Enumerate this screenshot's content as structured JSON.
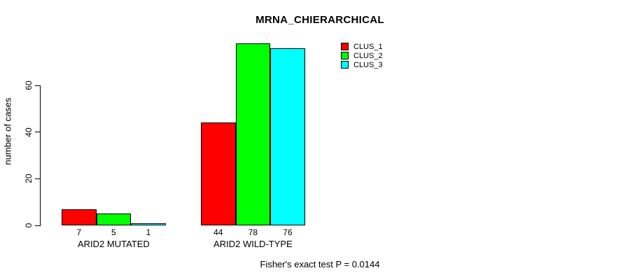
{
  "chart_data": {
    "type": "bar",
    "title": "MRNA_CHIERARCHICAL",
    "xlabel": "",
    "ylabel": "number of cases",
    "categories": [
      "ARID2 MUTATED",
      "ARID2 WILD-TYPE"
    ],
    "series": [
      {
        "name": "CLUS_1",
        "color": "#FF0000",
        "values": [
          7,
          44
        ]
      },
      {
        "name": "CLUS_2",
        "color": "#00FF00",
        "values": [
          5,
          78
        ]
      },
      {
        "name": "CLUS_3",
        "color": "#00FFFF",
        "values": [
          1,
          76
        ]
      }
    ],
    "yticks": [
      0,
      20,
      40,
      60
    ],
    "ylim": [
      0,
      60
    ],
    "bar_value_labels": true,
    "legend_position": "top-right",
    "grid": false,
    "annotation": "Fisher's exact test P = 0.0144"
  }
}
